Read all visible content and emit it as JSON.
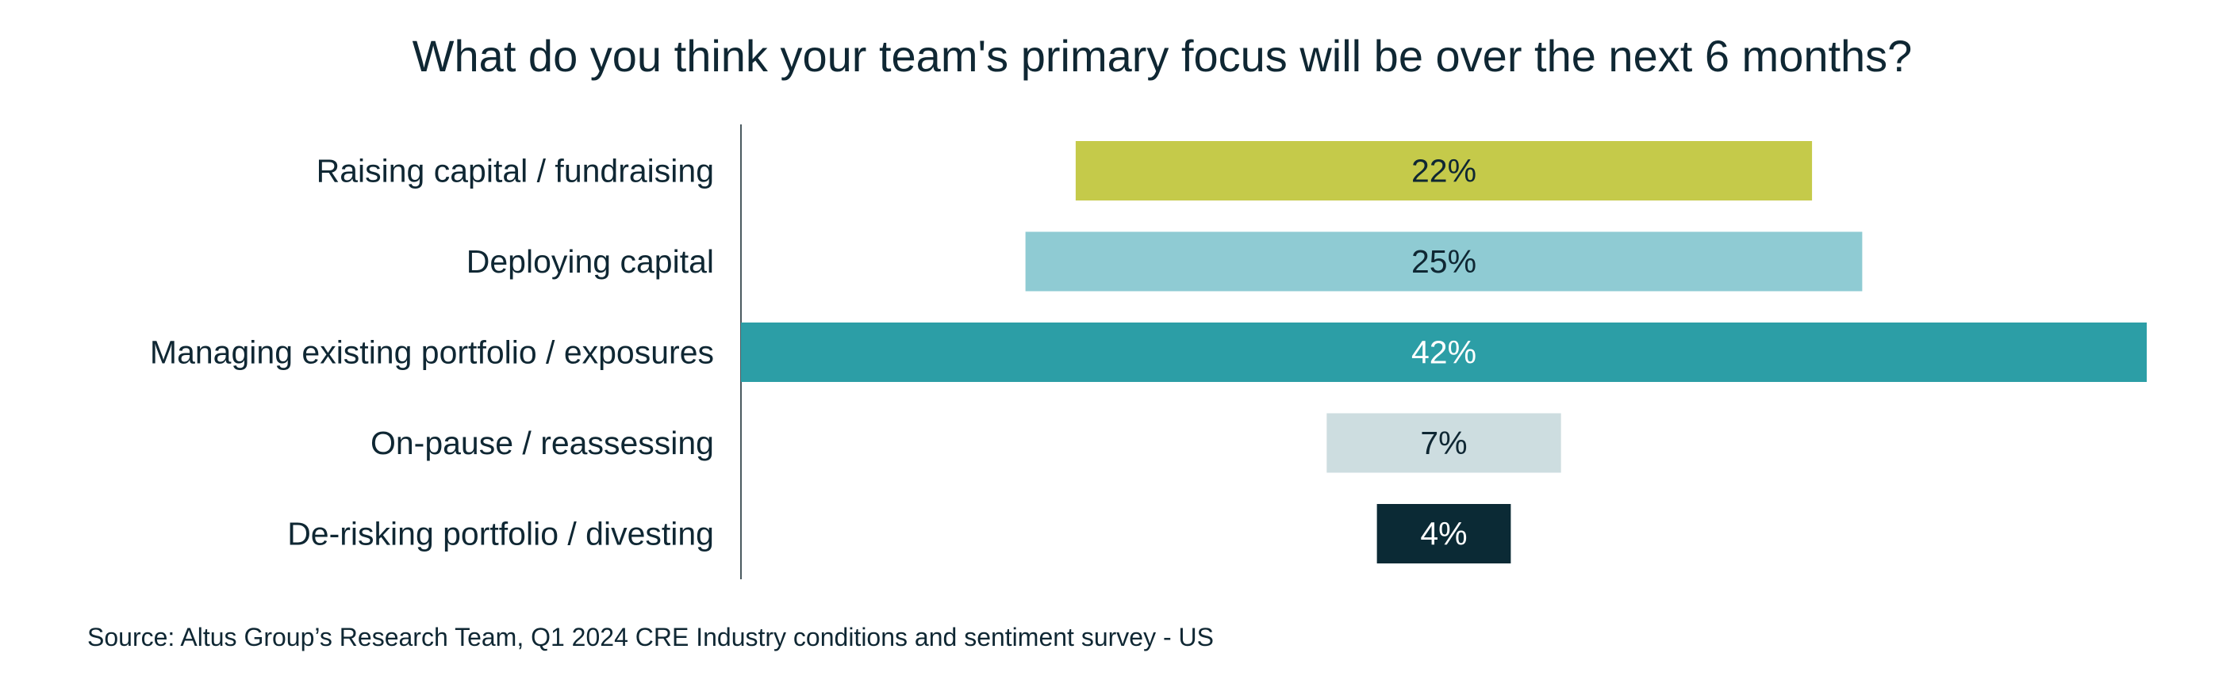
{
  "chart_data": {
    "type": "bar",
    "orientation": "horizontal",
    "layout": "centered funnel",
    "title": "What do you think your team's primary focus will be over the next 6 months?",
    "categories": [
      "Raising capital / fundraising",
      "Deploying capital",
      "Managing existing portfolio / exposures",
      "On-pause / reassessing",
      "De-risking portfolio / divesting"
    ],
    "values": [
      22,
      25,
      42,
      7,
      4
    ],
    "data_labels": [
      "22%",
      "25%",
      "42%",
      "7%",
      "4%"
    ],
    "colors": [
      "#c5ca4a",
      "#8fcbd3",
      "#2c9ea6",
      "#cddde0",
      "#0b2a35"
    ],
    "label_colors": [
      "#0f2733",
      "#0f2733",
      "#ffffff",
      "#0f2733",
      "#ffffff"
    ],
    "grid": false,
    "legend": "none",
    "source": "Source: Altus Group’s Research Team, Q1 2024 CRE Industry conditions and sentiment survey - US"
  }
}
